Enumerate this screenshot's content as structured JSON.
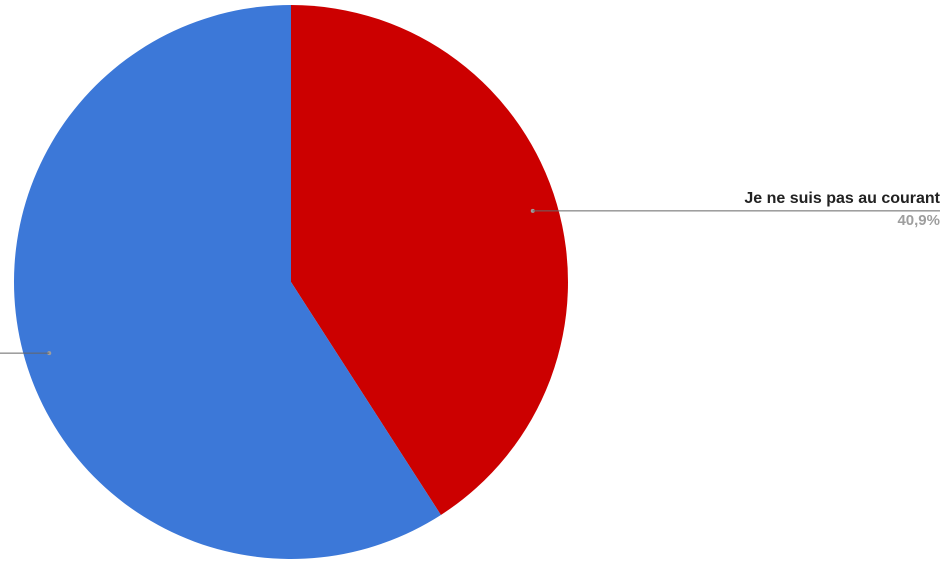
{
  "chart_data": {
    "type": "pie",
    "title": "",
    "start_angle_deg": 0,
    "direction": "clockwise",
    "slices": [
      {
        "label": "Je ne suis pas au courant",
        "value": 40.9,
        "value_label": "40,9%",
        "color": "#cc0000"
      },
      {
        "label": "",
        "value": 59.1,
        "value_label": "",
        "color": "#3c78d8"
      }
    ]
  }
}
